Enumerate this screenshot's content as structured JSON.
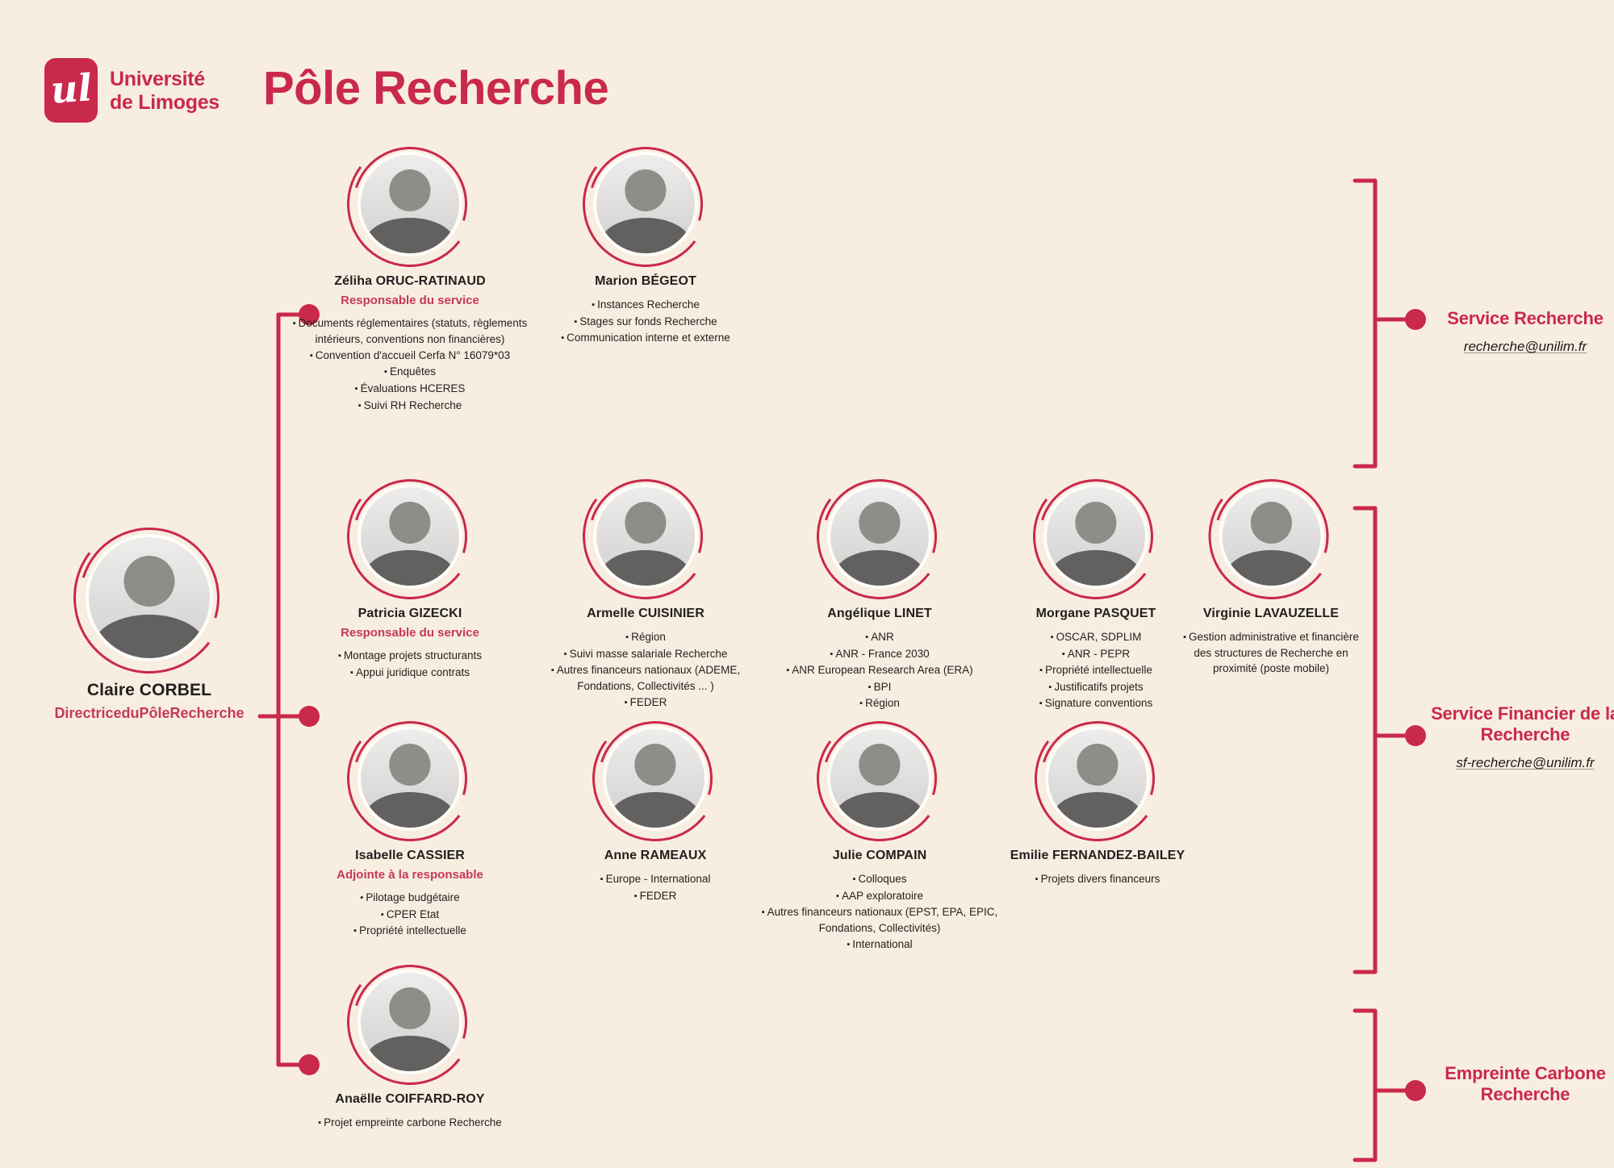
{
  "page": {
    "background": "#f8ede1",
    "accent_red": "#c9294a",
    "role_red": "#c43a58",
    "text_dark": "#211f1d"
  },
  "header": {
    "logo_monogram": "ul",
    "brand_line1": "Université",
    "brand_line2": "de Limoges",
    "title": "Pôle Recherche"
  },
  "director": {
    "name": "Claire CORBEL",
    "role": "DirectriceduPôleRecherche"
  },
  "people": [
    {
      "name": "Zéliha ORUC-RATINAUD",
      "role": "Responsable du service",
      "bullets": [
        "Documents réglementaires (statuts, règlements intérieurs, conventions non financières)",
        "Convention d'accueil Cerfa N° 16079*03",
        "Enquêtes",
        "Évaluations HCERES",
        "Suivi RH Recherche"
      ]
    },
    {
      "name": "Marion BÉGEOT",
      "bullets": [
        "Instances Recherche",
        "Stages sur fonds Recherche",
        "Communication interne et externe"
      ]
    },
    {
      "name": "Patricia GIZECKI",
      "role": "Responsable du service",
      "bullets": [
        "Montage projets structurants",
        "Appui juridique contrats"
      ]
    },
    {
      "name": "Armelle CUISINIER",
      "bullets": [
        "Région",
        "Suivi masse salariale Recherche",
        "Autres financeurs nationaux (ADEME, Fondations, Collectivités ... )",
        "FEDER"
      ]
    },
    {
      "name": "Angélique LINET",
      "bullets": [
        "ANR",
        "ANR - France 2030",
        "ANR European Research Area (ERA)",
        "BPI",
        "Région"
      ]
    },
    {
      "name": "Morgane PASQUET",
      "bullets": [
        "OSCAR, SDPLIM",
        "ANR - PEPR",
        "Propriété intellectuelle",
        "Justificatifs projets",
        "Signature conventions"
      ]
    },
    {
      "name": "Virginie LAVAUZELLE",
      "bullets": [
        "Gestion administrative et financière des structures de Recherche en proximité (poste mobile)"
      ]
    },
    {
      "name": "Isabelle CASSIER",
      "role": "Adjointe à la responsable",
      "bullets": [
        "Pilotage budgétaire",
        "CPER Etat",
        "Propriété intellectuelle"
      ]
    },
    {
      "name": "Anne RAMEAUX",
      "bullets": [
        "Europe - International",
        "FEDER"
      ]
    },
    {
      "name": "Julie COMPAIN",
      "bullets": [
        "Colloques",
        "AAP exploratoire",
        "Autres financeurs nationaux (EPST, EPA, EPIC, Fondations, Collectivités)",
        "International"
      ]
    },
    {
      "name": "Emilie FERNANDEZ-BAILEY",
      "bullets": [
        "Projets divers financeurs"
      ]
    },
    {
      "name": "Anaëlle COIFFARD-ROY",
      "bullets": [
        "Projet empreinte carbone Recherche"
      ]
    }
  ],
  "groups": [
    {
      "label": "Service Recherche",
      "email": "recherche@unilim.fr"
    },
    {
      "label": "Service Financier de la Recherche",
      "email": "sf-recherche@unilim.fr"
    },
    {
      "label": "Empreinte Carbone Recherche",
      "email": ""
    }
  ]
}
